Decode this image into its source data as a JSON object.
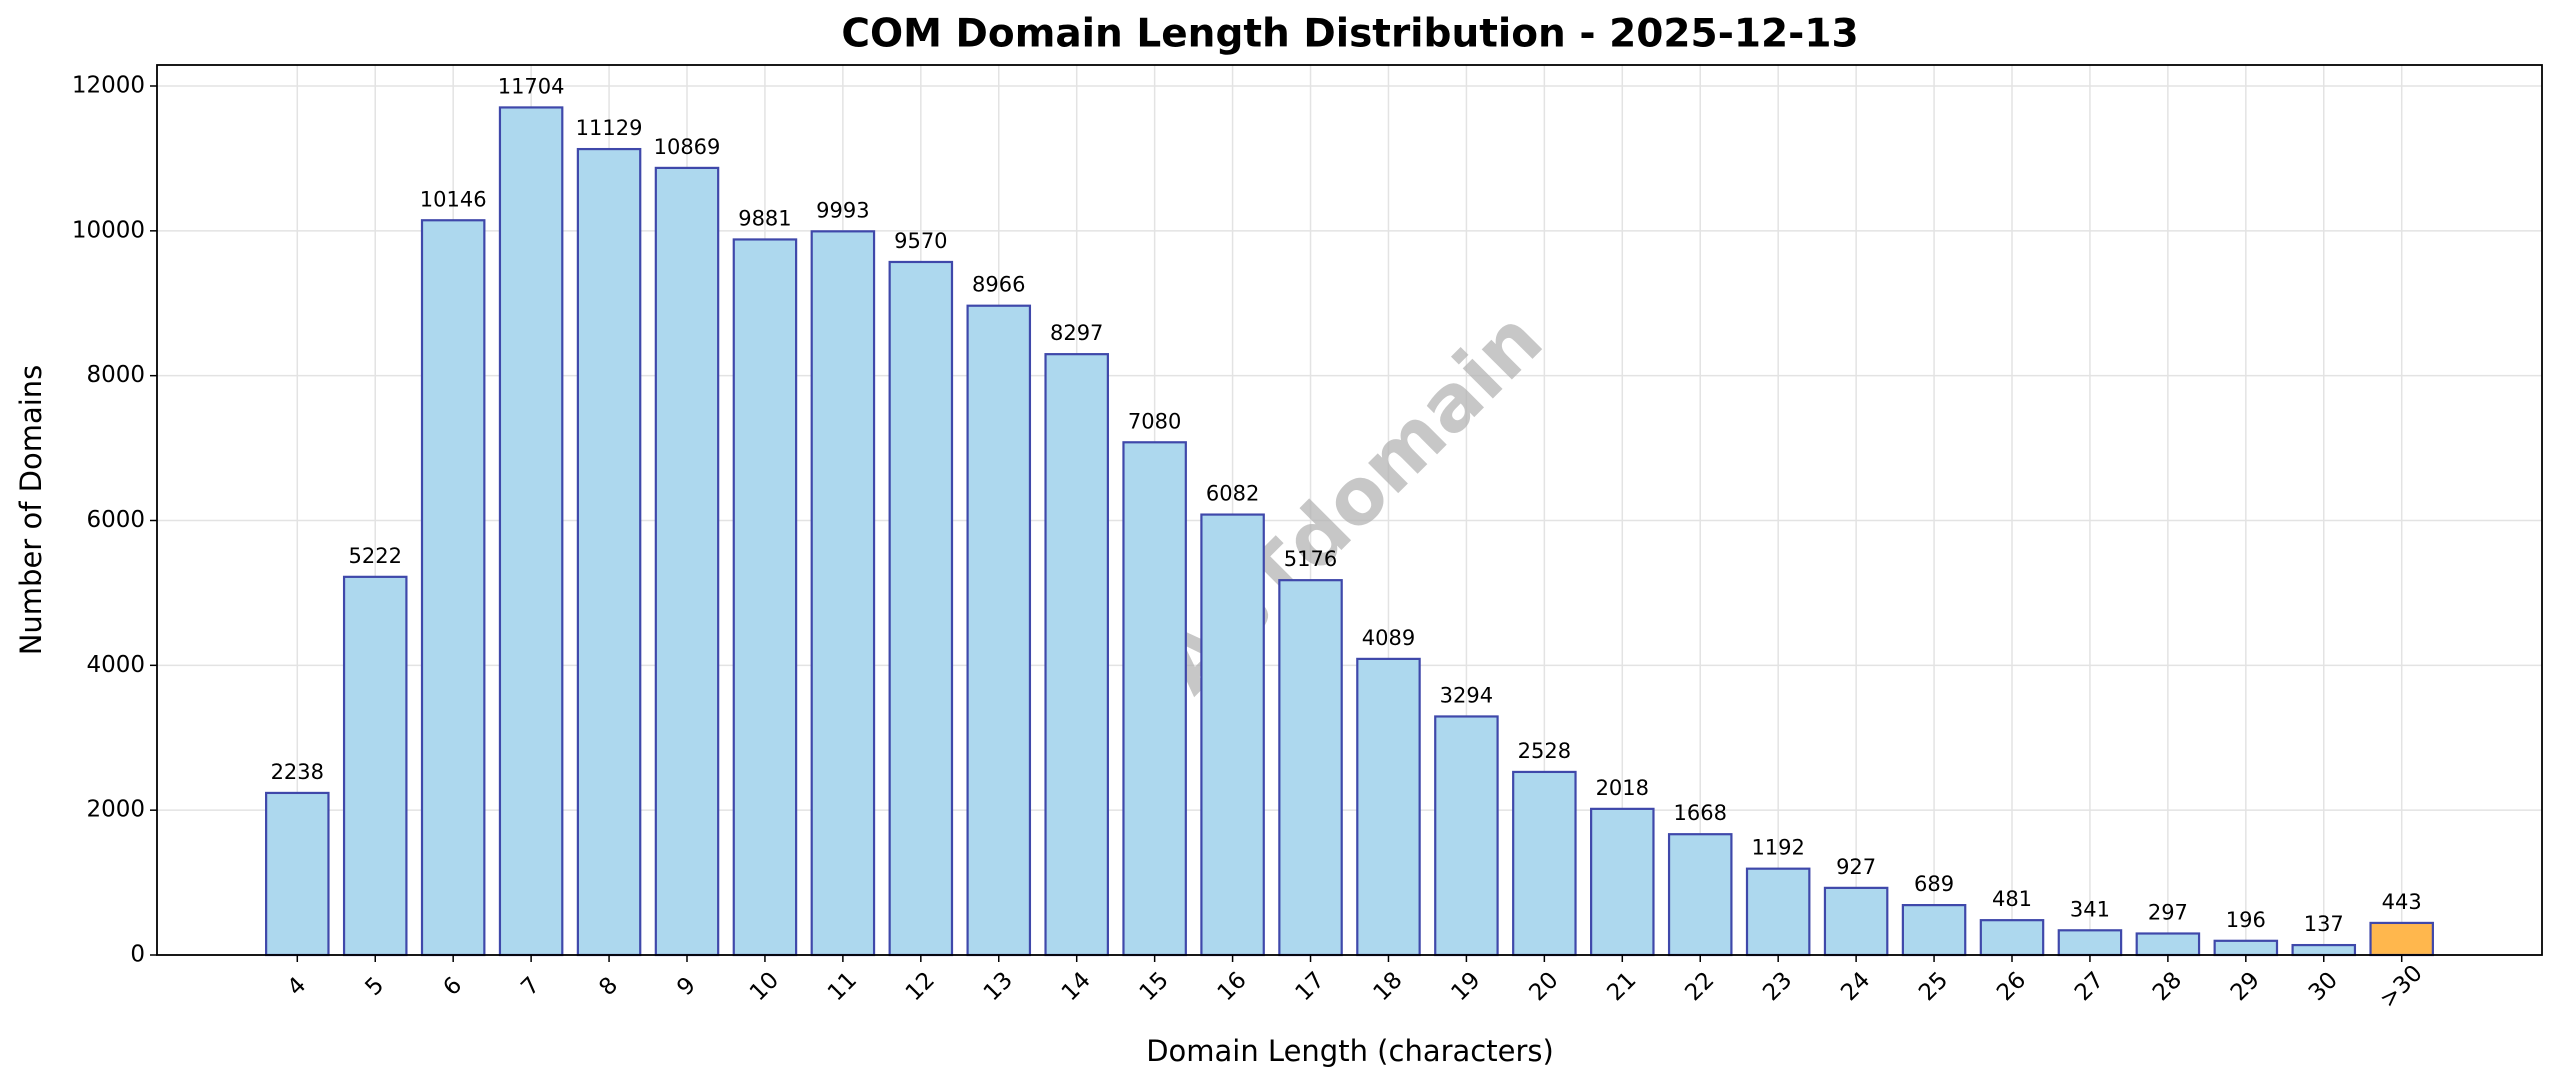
{
  "chart_data": {
    "type": "bar",
    "title": "COM Domain Length Distribution - 2025-12-13",
    "x_label": "Domain Length (characters)",
    "y_label": "Number of Domains",
    "watermark": "ABTdomain",
    "categories": [
      "4",
      "5",
      "6",
      "7",
      "8",
      "9",
      "10",
      "11",
      "12",
      "13",
      "14",
      "15",
      "16",
      "17",
      "18",
      "19",
      "20",
      "21",
      "22",
      "23",
      "24",
      "25",
      "26",
      "27",
      "28",
      "29",
      "30",
      ">30"
    ],
    "values": [
      2238,
      5222,
      10146,
      11704,
      11129,
      10869,
      9881,
      9993,
      9570,
      8966,
      8297,
      7080,
      6082,
      5176,
      4089,
      3294,
      2528,
      2018,
      1668,
      1192,
      927,
      689,
      481,
      341,
      297,
      196,
      137,
      443
    ],
    "colors": [
      "#add8ee",
      "#add8ee",
      "#add8ee",
      "#add8ee",
      "#add8ee",
      "#add8ee",
      "#add8ee",
      "#add8ee",
      "#add8ee",
      "#add8ee",
      "#add8ee",
      "#add8ee",
      "#add8ee",
      "#add8ee",
      "#add8ee",
      "#add8ee",
      "#add8ee",
      "#add8ee",
      "#add8ee",
      "#add8ee",
      "#add8ee",
      "#add8ee",
      "#add8ee",
      "#add8ee",
      "#add8ee",
      "#add8ee",
      "#add8ee",
      "#ffb74d"
    ],
    "edge_color": "#3f48aa",
    "ylim": [
      0,
      12290
    ],
    "yticks": [
      0,
      2000,
      4000,
      6000,
      8000,
      10000,
      12000
    ],
    "grid": true
  }
}
